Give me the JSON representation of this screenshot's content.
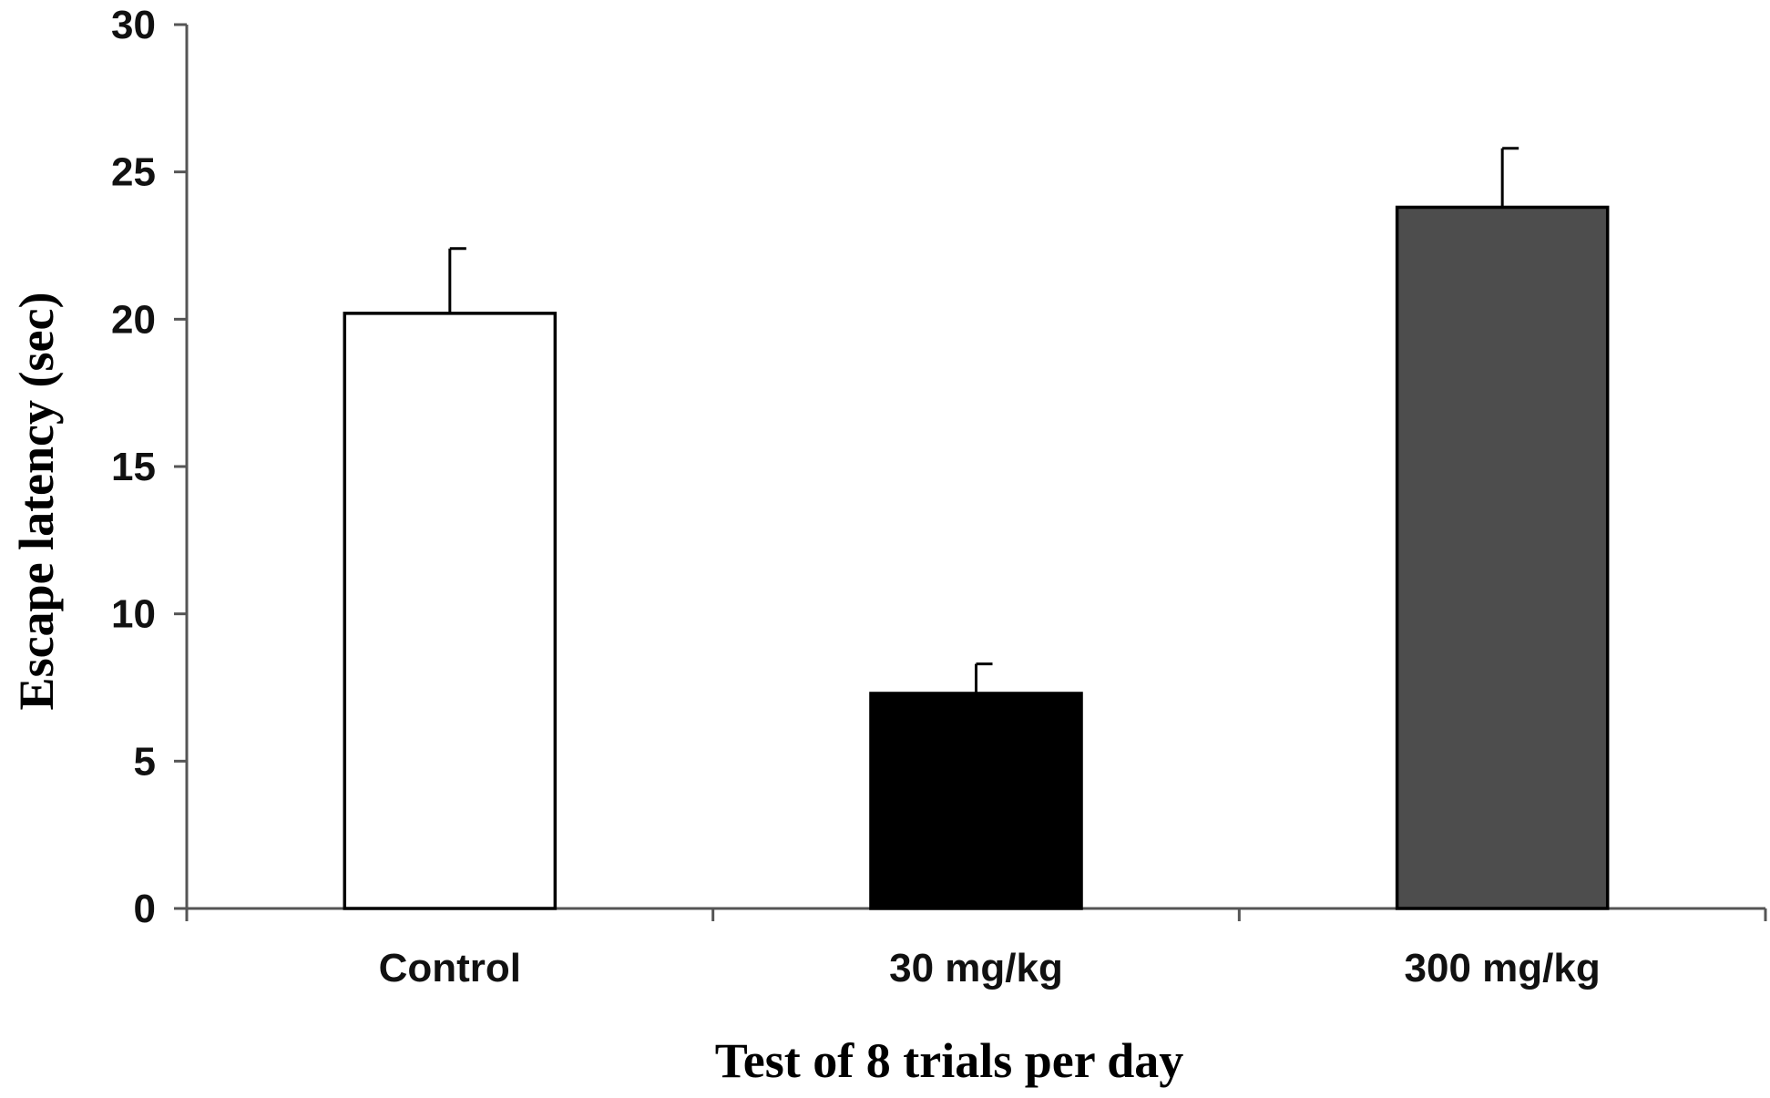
{
  "chart_data": {
    "type": "bar",
    "title": "",
    "xlabel": "Test of 8 trials per day",
    "ylabel": "Escape latency (sec)",
    "ylim": [
      0,
      30
    ],
    "yticks": [
      "0",
      "5",
      "10",
      "15",
      "20",
      "25",
      "30"
    ],
    "ytick_values": [
      0,
      5,
      10,
      15,
      20,
      25,
      30
    ],
    "categories": [
      "Control",
      "30 mg/kg",
      "300 mg/kg"
    ],
    "values": [
      20.2,
      7.3,
      23.8
    ],
    "errors": [
      2.2,
      1.0,
      2.0
    ],
    "bar_colors": [
      "#ffffff",
      "#000000",
      "#4d4d4d"
    ],
    "edge_color": "#000000",
    "grid": false,
    "legend": "none"
  }
}
